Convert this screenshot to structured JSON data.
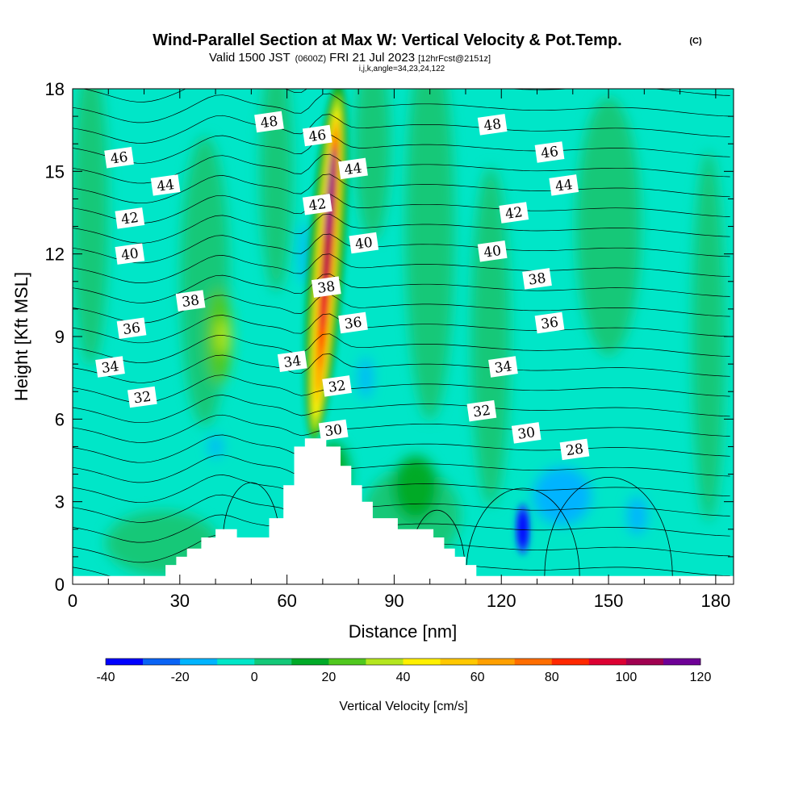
{
  "title": {
    "main": "Wind-Parallel Section at Max W: Vertical Velocity & Pot.Temp.",
    "copyright": "(C)",
    "valid_prefix": "Valid 1500 JST",
    "valid_utc": "(0600Z)",
    "valid_date": "FRI 21 Jul 2023",
    "forecast": "[12hrFcst@2151z]",
    "grid_info": "i,j,k,angle=34,23,24,122"
  },
  "chart_data": {
    "type": "heatmap",
    "xlabel": "Distance [nm]",
    "ylabel": "Height [Kft MSL]",
    "xlim": [
      0,
      185
    ],
    "ylim": [
      0,
      18
    ],
    "xticks": [
      0,
      30,
      60,
      90,
      120,
      150,
      180
    ],
    "yticks": [
      0,
      3,
      6,
      9,
      12,
      15,
      18
    ],
    "grid": false,
    "colorbar": {
      "label": "Vertical Velocity [cm/s]",
      "levels": [
        -40,
        -30,
        -20,
        -10,
        0,
        10,
        20,
        30,
        40,
        50,
        60,
        70,
        80,
        90,
        100,
        110,
        120
      ],
      "tick_values": [
        -40,
        -20,
        0,
        20,
        40,
        60,
        80,
        100,
        120
      ],
      "colors": [
        "#0000ff",
        "#0a64f5",
        "#00b4ff",
        "#00e6c8",
        "#14c878",
        "#00aa28",
        "#50c81e",
        "#b4e61e",
        "#fff000",
        "#ffc800",
        "#ffa000",
        "#ff6e00",
        "#ff2800",
        "#dc0032",
        "#a00050",
        "#6e0096"
      ],
      "placement": "bottom"
    },
    "vertical_velocity": {
      "background_cm_s": 5,
      "updraft_core": {
        "x": 71,
        "y_range": [
          5,
          18
        ],
        "max_cm_s": 120
      },
      "downdraft_cores": [
        {
          "x": 126,
          "y": 2,
          "min_cm_s": -40
        },
        {
          "x": 137,
          "y": 3.2,
          "min_cm_s": -20
        }
      ]
    },
    "theta_contours": {
      "interval": 2,
      "labels": [
        {
          "value": "28",
          "x": 140.5,
          "y": 4.9
        },
        {
          "value": "30",
          "x": 127,
          "y": 5.5
        },
        {
          "value": "30",
          "x": 73,
          "y": 5.6
        },
        {
          "value": "32",
          "x": 19.5,
          "y": 6.8
        },
        {
          "value": "32",
          "x": 74,
          "y": 7.2
        },
        {
          "value": "32",
          "x": 114.5,
          "y": 6.3
        },
        {
          "value": "34",
          "x": 10.5,
          "y": 7.9
        },
        {
          "value": "34",
          "x": 61.5,
          "y": 8.1
        },
        {
          "value": "34",
          "x": 120.5,
          "y": 7.9
        },
        {
          "value": "36",
          "x": 16.5,
          "y": 9.3
        },
        {
          "value": "36",
          "x": 78.5,
          "y": 9.5
        },
        {
          "value": "36",
          "x": 133.5,
          "y": 9.5
        },
        {
          "value": "38",
          "x": 33,
          "y": 10.3
        },
        {
          "value": "38",
          "x": 71,
          "y": 10.8
        },
        {
          "value": "38",
          "x": 130,
          "y": 11.1
        },
        {
          "value": "40",
          "x": 16,
          "y": 12.0
        },
        {
          "value": "40",
          "x": 81.5,
          "y": 12.4
        },
        {
          "value": "40",
          "x": 117.5,
          "y": 12.1
        },
        {
          "value": "42",
          "x": 16,
          "y": 13.3
        },
        {
          "value": "42",
          "x": 68.5,
          "y": 13.8
        },
        {
          "value": "42",
          "x": 123.5,
          "y": 13.5
        },
        {
          "value": "44",
          "x": 26,
          "y": 14.5
        },
        {
          "value": "44",
          "x": 78.5,
          "y": 15.1
        },
        {
          "value": "44",
          "x": 137.5,
          "y": 14.5
        },
        {
          "value": "46",
          "x": 13,
          "y": 15.5
        },
        {
          "value": "46",
          "x": 68.5,
          "y": 16.3
        },
        {
          "value": "46",
          "x": 133.5,
          "y": 15.7
        },
        {
          "value": "48",
          "x": 55,
          "y": 16.8
        },
        {
          "value": "48",
          "x": 117.5,
          "y": 16.7
        }
      ]
    },
    "terrain": {
      "color": "#ffffff",
      "x": [
        0,
        26,
        26,
        29,
        29,
        32,
        32,
        36,
        36,
        40,
        40,
        46,
        46,
        55,
        55,
        59,
        59,
        62,
        62,
        65,
        65,
        71,
        71,
        75,
        75,
        78,
        78,
        81,
        81,
        84,
        84,
        91,
        91,
        101,
        101,
        104,
        104,
        107,
        107,
        110,
        110,
        113,
        113,
        117,
        117,
        120,
        120,
        185
      ],
      "height": [
        0.3,
        0.3,
        0.7,
        0.7,
        1.0,
        1.0,
        1.3,
        1.3,
        1.7,
        1.7,
        2.0,
        2.0,
        1.7,
        1.7,
        2.4,
        2.4,
        3.6,
        3.6,
        5.0,
        5.0,
        5.3,
        5.3,
        5.0,
        5.0,
        4.3,
        4.3,
        3.6,
        3.6,
        3.0,
        3.0,
        2.4,
        2.4,
        2.0,
        2.0,
        1.7,
        1.7,
        1.3,
        1.3,
        1.0,
        1.0,
        0.7,
        0.7,
        0.3,
        0.3,
        0.3,
        0.3,
        0.3,
        0.3
      ]
    }
  }
}
